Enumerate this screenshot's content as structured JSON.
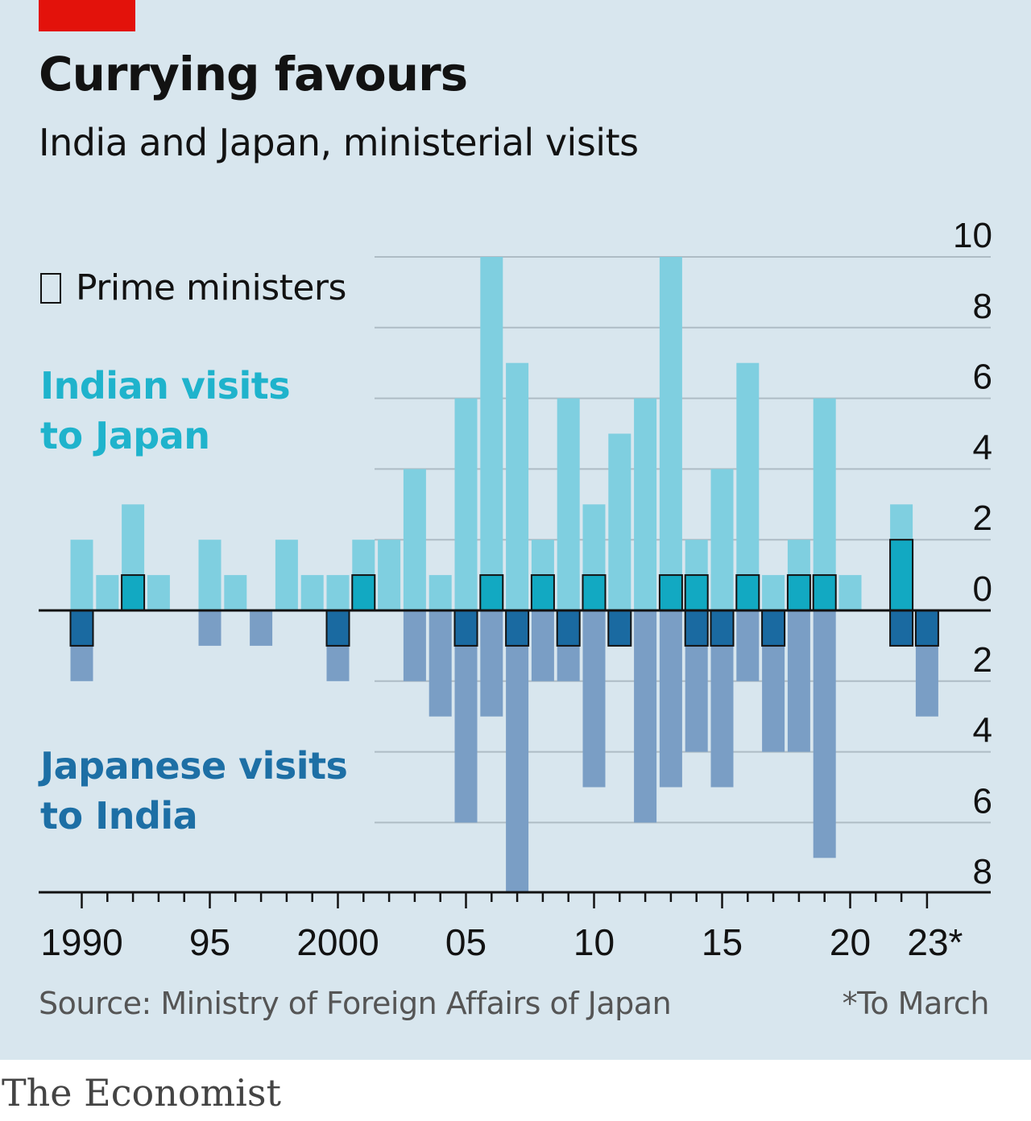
{
  "header": {
    "title": "Currying favours",
    "subtitle": "India and Japan, ministerial visits"
  },
  "legend": {
    "prime_ministers": "Prime ministers"
  },
  "labels": {
    "indian_line1": "Indian visits",
    "indian_line2": "to Japan",
    "japanese_line1": "Japanese visits",
    "japanese_line2": "to India"
  },
  "footer": {
    "source": "Source: Ministry of Foreign Affairs of Japan",
    "note": "*To March",
    "brand": "The Economist"
  },
  "colors": {
    "background": "#d8e6ee",
    "indian_total": "#7fcfe0",
    "indian_pm": "#12a9c2",
    "japanese_total": "#7a9ec5",
    "japanese_pm": "#1a6aa1",
    "gridline": "#aebcc5",
    "accent_red": "#e3120b"
  },
  "chart_data": {
    "type": "bar",
    "x": [
      1990,
      1991,
      1992,
      1993,
      1994,
      1995,
      1996,
      1997,
      1998,
      1999,
      2000,
      2001,
      2002,
      2003,
      2004,
      2005,
      2006,
      2007,
      2008,
      2009,
      2010,
      2011,
      2012,
      2013,
      2014,
      2015,
      2016,
      2017,
      2018,
      2019,
      2020,
      2021,
      2022,
      2023
    ],
    "series": [
      {
        "name": "Indian visits to Japan",
        "direction": "up",
        "values": [
          2,
          1,
          3,
          1,
          0,
          2,
          1,
          0,
          2,
          1,
          1,
          2,
          2,
          4,
          1,
          6,
          10,
          7,
          2,
          6,
          3,
          5,
          6,
          10,
          2,
          4,
          7,
          1,
          2,
          6,
          1,
          0,
          3,
          0
        ]
      },
      {
        "name": "Prime ministers",
        "direction": "up",
        "values": [
          0,
          0,
          1,
          0,
          0,
          0,
          0,
          0,
          0,
          0,
          0,
          1,
          0,
          0,
          0,
          0,
          1,
          0,
          1,
          0,
          1,
          0,
          0,
          1,
          1,
          0,
          1,
          0,
          1,
          1,
          0,
          0,
          2,
          0
        ]
      },
      {
        "name": "Japanese visits to India",
        "direction": "down",
        "values": [
          2,
          0,
          0,
          0,
          0,
          1,
          0,
          1,
          0,
          0,
          2,
          0,
          0,
          2,
          3,
          6,
          3,
          8,
          2,
          2,
          5,
          1,
          6,
          5,
          4,
          5,
          2,
          4,
          4,
          7,
          0,
          0,
          1,
          3
        ]
      },
      {
        "name": "Prime ministers",
        "direction": "down",
        "values": [
          1,
          0,
          0,
          0,
          0,
          0,
          0,
          0,
          0,
          0,
          1,
          0,
          0,
          0,
          0,
          1,
          0,
          1,
          0,
          1,
          0,
          1,
          0,
          0,
          1,
          1,
          0,
          1,
          0,
          0,
          0,
          0,
          1,
          1
        ]
      }
    ],
    "y_ticks_up": [
      "0",
      "2",
      "4",
      "6",
      "8",
      "10"
    ],
    "y_ticks_down": [
      "2",
      "4",
      "6",
      "8"
    ],
    "ylim": [
      -8,
      10
    ],
    "x_tick_labels": [
      {
        "year": 1990,
        "label": "1990"
      },
      {
        "year": 1995,
        "label": "95"
      },
      {
        "year": 2000,
        "label": "2000"
      },
      {
        "year": 2005,
        "label": "05"
      },
      {
        "year": 2010,
        "label": "10"
      },
      {
        "year": 2015,
        "label": "15"
      },
      {
        "year": 2020,
        "label": "20"
      },
      {
        "year": 2023,
        "label": "23*"
      }
    ],
    "grid": true,
    "y_axis_position": "right"
  }
}
